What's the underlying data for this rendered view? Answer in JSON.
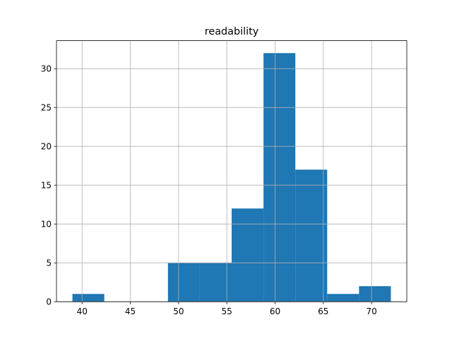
{
  "chart_data": {
    "type": "histogram",
    "title": "readability",
    "bins": [
      39,
      42.3,
      45.6,
      48.9,
      52.2,
      55.5,
      58.8,
      62.1,
      65.4,
      68.7,
      72
    ],
    "counts": [
      1,
      0,
      0,
      5,
      5,
      12,
      32,
      17,
      1,
      2
    ],
    "color": "#1f77b4",
    "xlim": [
      37.35,
      73.65
    ],
    "xticks": [
      40,
      45,
      50,
      55,
      60,
      65,
      70
    ],
    "ylim": [
      0,
      33.6
    ],
    "yticks": [
      0,
      5,
      10,
      15,
      20,
      25,
      30
    ],
    "grid": true
  }
}
